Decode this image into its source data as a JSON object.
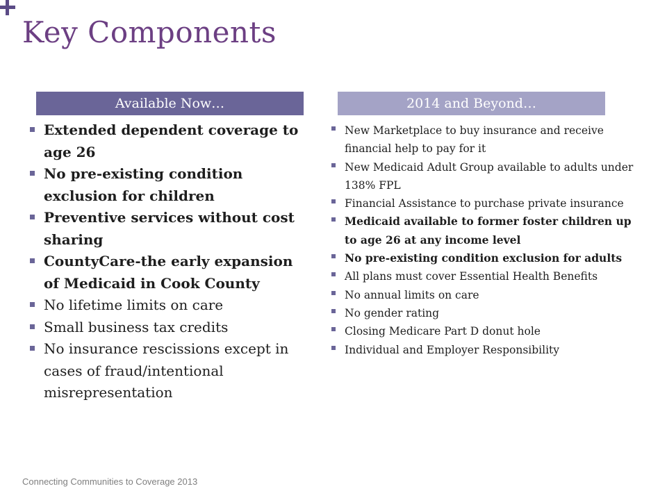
{
  "slide": {
    "title": "Key Components",
    "footer": "Connecting Communities to Coverage 2013"
  },
  "columns": {
    "left": {
      "header": "Available Now…",
      "items": [
        {
          "text": "Extended dependent coverage to age 26",
          "bold": true
        },
        {
          "text": "No pre-existing condition exclusion for children",
          "bold": true
        },
        {
          "text": "Preventive services without cost sharing",
          "bold": true
        },
        {
          "text": "CountyCare-the early expansion of Medicaid in Cook County",
          "bold": true
        },
        {
          "text": "No lifetime limits on care",
          "bold": false
        },
        {
          "text": "Small business tax credits",
          "bold": false
        },
        {
          "text": "No insurance rescissions except in cases of fraud/intentional misrepresentation",
          "bold": false
        }
      ]
    },
    "right": {
      "header": "2014 and Beyond…",
      "items": [
        {
          "text": "New Marketplace to buy insurance and receive financial help to pay for it",
          "bold": false
        },
        {
          "text": "New Medicaid Adult Group available to adults under 138% FPL",
          "bold": false
        },
        {
          "text": "Financial Assistance to purchase private insurance",
          "bold": false
        },
        {
          "text": "Medicaid available to former foster children up to age 26 at any income level",
          "bold": true
        },
        {
          "text": "No pre-existing condition exclusion for adults",
          "bold": true
        },
        {
          "text": "All plans must cover Essential Health Benefits",
          "bold": false
        },
        {
          "text": "No annual limits on care",
          "bold": false
        },
        {
          "text": "No gender rating",
          "bold": false
        },
        {
          "text": "Closing Medicare Part D donut hole",
          "bold": false
        },
        {
          "text": "Individual and Employer Responsibility",
          "bold": false
        }
      ]
    }
  },
  "colors": {
    "title": "#6c3f83",
    "left_header_bg": "#6a6598",
    "right_header_bg": "#a4a3c6",
    "bullet": "#6a6598",
    "footer": "#7f7f7f"
  }
}
